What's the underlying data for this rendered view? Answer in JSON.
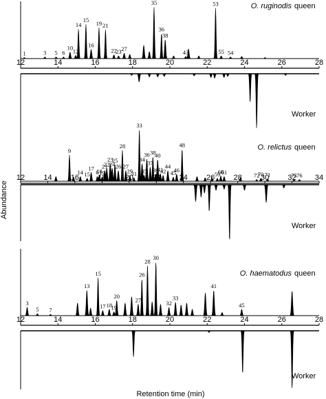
{
  "chart_data": {
    "type": "line",
    "xlabel": "Retention time (min)",
    "ylabel": "Abundance",
    "panels": [
      {
        "species": "O. ruginodis",
        "caste_top": "queen",
        "caste_bottom": "Worker",
        "xlim": [
          12,
          28
        ],
        "ticks": [
          12,
          14,
          16,
          18,
          20,
          22,
          24,
          26,
          28
        ],
        "queen_peaks": [
          {
            "label": "1",
            "x": 12.2,
            "h": 0.02
          },
          {
            "label": "3",
            "x": 13.3,
            "h": 0.03
          },
          {
            "label": "5",
            "x": 13.9,
            "h": 0.03
          },
          {
            "label": "6",
            "x": 14.3,
            "h": 0.03
          },
          {
            "label": "10",
            "x": 14.65,
            "h": 0.12
          },
          {
            "label": "12",
            "x": 14.95,
            "h": 0.06
          },
          {
            "label": "14",
            "x": 15.1,
            "h": 0.55
          },
          {
            "label": "15",
            "x": 15.5,
            "h": 0.64
          },
          {
            "label": "16",
            "x": 15.78,
            "h": 0.17
          },
          {
            "label": "19",
            "x": 16.2,
            "h": 0.58
          },
          {
            "label": "21",
            "x": 16.55,
            "h": 0.54
          },
          {
            "label": "22",
            "x": 17.0,
            "h": 0.07
          },
          {
            "label": "23",
            "x": 17.25,
            "h": 0.05
          },
          {
            "label": "27",
            "x": 17.55,
            "h": 0.1
          },
          {
            "label": "",
            "x": 17.85,
            "h": 0.08
          },
          {
            "label": "",
            "x": 18.6,
            "h": 0.25
          },
          {
            "label": "",
            "x": 18.9,
            "h": 0.13
          },
          {
            "label": "35",
            "x": 19.15,
            "h": 0.96
          },
          {
            "label": "36",
            "x": 19.55,
            "h": 0.47
          },
          {
            "label": "38",
            "x": 19.75,
            "h": 0.35
          },
          {
            "label": "",
            "x": 20.2,
            "h": 0.05
          },
          {
            "label": "43",
            "x": 20.85,
            "h": 0.04
          },
          {
            "label": "",
            "x": 21.0,
            "h": 0.18
          },
          {
            "label": "",
            "x": 21.55,
            "h": 0.05
          },
          {
            "label": "53",
            "x": 22.45,
            "h": 0.94
          },
          {
            "label": "55",
            "x": 22.75,
            "h": 0.05
          },
          {
            "label": "54",
            "x": 23.25,
            "h": 0.03
          },
          {
            "label": "",
            "x": 23.85,
            "h": 0.04
          },
          {
            "label": "",
            "x": 25.1,
            "h": 0.02
          }
        ],
        "worker_peaks": [
          {
            "x": 17.95,
            "h": 0.03
          },
          {
            "x": 18.35,
            "h": 0.15
          },
          {
            "x": 18.9,
            "h": 0.06
          },
          {
            "x": 19.35,
            "h": 0.06
          },
          {
            "x": 19.7,
            "h": 0.05
          },
          {
            "x": 21.3,
            "h": 0.04
          },
          {
            "x": 22.2,
            "h": 0.07
          },
          {
            "x": 22.4,
            "h": 0.08
          },
          {
            "x": 22.9,
            "h": 0.07
          },
          {
            "x": 23.1,
            "h": 0.05
          },
          {
            "x": 24.3,
            "h": 0.52
          },
          {
            "x": 24.65,
            "h": 1.0
          },
          {
            "x": 26.2,
            "h": 0.03
          }
        ]
      },
      {
        "species": "O. relictus",
        "caste_top": "queen",
        "caste_bottom": "Worker",
        "xlim": [
          12,
          34
        ],
        "ticks": [
          12,
          14,
          16,
          18,
          20,
          22,
          24,
          26,
          28,
          30,
          32,
          34
        ],
        "queen_peaks": [
          {
            "label": "",
            "x": 14.6,
            "h": 0.08
          },
          {
            "label": "9",
            "x": 15.6,
            "h": 0.45
          },
          {
            "label": "",
            "x": 15.9,
            "h": 0.07
          },
          {
            "label": "14",
            "x": 16.4,
            "h": 0.08
          },
          {
            "label": "15",
            "x": 16.9,
            "h": 0.05
          },
          {
            "label": "17",
            "x": 17.2,
            "h": 0.15
          },
          {
            "label": "18",
            "x": 17.8,
            "h": 0.1
          },
          {
            "label": "6",
            "x": 17.65,
            "h": 0.08
          },
          {
            "label": "19",
            "x": 18.0,
            "h": 0.07
          },
          {
            "label": "21",
            "x": 18.2,
            "h": 0.18
          },
          {
            "label": "22",
            "x": 18.35,
            "h": 0.22
          },
          {
            "label": "23",
            "x": 18.6,
            "h": 0.3
          },
          {
            "label": "24",
            "x": 18.75,
            "h": 0.22
          },
          {
            "label": "25",
            "x": 18.95,
            "h": 0.28
          },
          {
            "label": "26",
            "x": 19.2,
            "h": 0.18
          },
          {
            "label": "28",
            "x": 19.5,
            "h": 0.53
          },
          {
            "label": "27",
            "x": 19.75,
            "h": 0.18
          },
          {
            "label": "29",
            "x": 20.05,
            "h": 0.1
          },
          {
            "label": "31",
            "x": 20.35,
            "h": 0.06
          },
          {
            "label": "33",
            "x": 20.75,
            "h": 0.88
          },
          {
            "label": "34",
            "x": 20.95,
            "h": 0.3
          },
          {
            "label": "35",
            "x": 21.1,
            "h": 0.1
          },
          {
            "label": "36",
            "x": 21.3,
            "h": 0.38
          },
          {
            "label": "37",
            "x": 21.55,
            "h": 0.24
          },
          {
            "label": "38",
            "x": 21.75,
            "h": 0.42
          },
          {
            "label": "39",
            "x": 21.95,
            "h": 0.12
          },
          {
            "label": "40",
            "x": 22.1,
            "h": 0.37
          },
          {
            "label": "41",
            "x": 22.3,
            "h": 0.13
          },
          {
            "label": "42",
            "x": 22.5,
            "h": 0.1
          },
          {
            "label": "44",
            "x": 22.85,
            "h": 0.18
          },
          {
            "label": "45",
            "x": 23.25,
            "h": 0.07
          },
          {
            "label": "46",
            "x": 23.5,
            "h": 0.12
          },
          {
            "label": "48",
            "x": 23.9,
            "h": 0.55
          },
          {
            "label": "",
            "x": 25.0,
            "h": 0.08
          },
          {
            "label": "",
            "x": 25.6,
            "h": 0.06
          },
          {
            "label": "",
            "x": 26.1,
            "h": 0.06
          },
          {
            "label": "59",
            "x": 26.5,
            "h": 0.05
          },
          {
            "label": "60",
            "x": 26.75,
            "h": 0.09
          },
          {
            "label": "61",
            "x": 27.0,
            "h": 0.08
          },
          {
            "label": "",
            "x": 28.2,
            "h": 0.06
          },
          {
            "label": "72",
            "x": 29.4,
            "h": 0.03
          },
          {
            "label": "70",
            "x": 29.7,
            "h": 0.05
          },
          {
            "label": "71",
            "x": 30.2,
            "h": 0.04
          },
          {
            "label": "75",
            "x": 32.15,
            "h": 0.03
          },
          {
            "label": "76",
            "x": 32.55,
            "h": 0.03
          }
        ],
        "worker_peaks": [
          {
            "x": 24.9,
            "h": 0.3
          },
          {
            "x": 25.3,
            "h": 0.22
          },
          {
            "x": 25.55,
            "h": 0.15
          },
          {
            "x": 25.9,
            "h": 0.48
          },
          {
            "x": 26.4,
            "h": 0.1
          },
          {
            "x": 27.0,
            "h": 0.08
          },
          {
            "x": 27.4,
            "h": 1.0
          },
          {
            "x": 28.5,
            "h": 0.1
          },
          {
            "x": 30.1,
            "h": 0.32
          },
          {
            "x": 31.4,
            "h": 0.06
          }
        ]
      },
      {
        "species": "O. haematodus",
        "caste_top": "queen",
        "caste_bottom": "Worker",
        "xlim": [
          12,
          28
        ],
        "ticks": [
          12,
          14,
          16,
          18,
          20,
          22,
          24,
          26,
          28
        ],
        "queen_peaks": [
          {
            "label": "3",
            "x": 12.35,
            "h": 0.13
          },
          {
            "label": "5",
            "x": 12.9,
            "h": 0.03
          },
          {
            "label": "7",
            "x": 13.6,
            "h": 0.02
          },
          {
            "label": "",
            "x": 15.05,
            "h": 0.2
          },
          {
            "label": "13",
            "x": 15.55,
            "h": 0.4
          },
          {
            "label": "",
            "x": 15.75,
            "h": 0.12
          },
          {
            "label": "15",
            "x": 16.15,
            "h": 0.6
          },
          {
            "label": "17",
            "x": 16.4,
            "h": 0.08
          },
          {
            "label": "18",
            "x": 16.75,
            "h": 0.1
          },
          {
            "label": "19",
            "x": 17.0,
            "h": 0.06
          },
          {
            "label": "20",
            "x": 17.15,
            "h": 0.24
          },
          {
            "label": "",
            "x": 17.6,
            "h": 0.2
          },
          {
            "label": "",
            "x": 17.95,
            "h": 0.3
          },
          {
            "label": "27",
            "x": 18.3,
            "h": 0.18
          },
          {
            "label": "26",
            "x": 18.5,
            "h": 0.58
          },
          {
            "label": "28",
            "x": 18.8,
            "h": 0.79
          },
          {
            "label": "",
            "x": 19.05,
            "h": 0.22
          },
          {
            "label": "30",
            "x": 19.25,
            "h": 0.85
          },
          {
            "label": "",
            "x": 19.5,
            "h": 0.18
          },
          {
            "label": "32",
            "x": 19.95,
            "h": 0.13
          },
          {
            "label": "33",
            "x": 20.3,
            "h": 0.21
          },
          {
            "label": "",
            "x": 20.6,
            "h": 0.17
          },
          {
            "label": "",
            "x": 20.9,
            "h": 0.2
          },
          {
            "label": "",
            "x": 21.2,
            "h": 0.1
          },
          {
            "label": "",
            "x": 21.9,
            "h": 0.36
          },
          {
            "label": "41",
            "x": 22.35,
            "h": 0.4
          },
          {
            "label": "",
            "x": 22.8,
            "h": 0.05
          },
          {
            "label": "45",
            "x": 23.85,
            "h": 0.1
          },
          {
            "label": "",
            "x": 26.55,
            "h": 0.39
          }
        ],
        "worker_peaks": [
          {
            "x": 18.05,
            "h": 0.45
          },
          {
            "x": 22.1,
            "h": 0.03
          },
          {
            "x": 23.9,
            "h": 0.74
          },
          {
            "x": 26.55,
            "h": 1.0
          }
        ]
      }
    ]
  }
}
